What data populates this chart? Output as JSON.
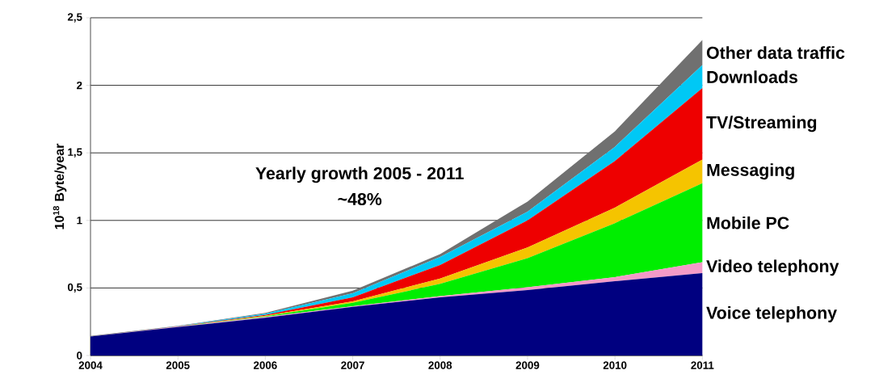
{
  "chart_data": {
    "type": "area",
    "stacked": true,
    "ylabel": "10$^{18}$ Byte/year",
    "x": [
      2004,
      2005,
      2006,
      2007,
      2008,
      2009,
      2010,
      2011
    ],
    "xlim": [
      2004,
      2011
    ],
    "xticks": [
      2004,
      2005,
      2006,
      2007,
      2008,
      2009,
      2010,
      2011
    ],
    "ylim": [
      0,
      2.5
    ],
    "yticks": [
      0,
      {
        "value": 0.5,
        "label": "0,5"
      },
      1,
      {
        "value": 1.5,
        "label": "1,5"
      },
      2,
      {
        "value": 2.5,
        "label": "2,5"
      }
    ],
    "grid": "y",
    "annotations": [
      "Yearly growth 2005 - 2011",
      "~48%"
    ],
    "series": [
      {
        "name": "Voice telephony",
        "color": "#000080",
        "values": [
          0.14,
          0.21,
          0.28,
          0.36,
          0.43,
          0.485,
          0.55,
          0.61
        ]
      },
      {
        "name": "Video telephony",
        "color": "#f49ac8",
        "values": [
          0,
          0.003,
          0.005,
          0.005,
          0.01,
          0.02,
          0.03,
          0.08
        ]
      },
      {
        "name": "Mobile PC",
        "color": "#00ee00",
        "values": [
          0,
          0,
          0.005,
          0.025,
          0.09,
          0.215,
          0.4,
          0.585
        ]
      },
      {
        "name": "Messaging",
        "color": "#f5c400",
        "values": [
          0,
          0.001,
          0.005,
          0.01,
          0.04,
          0.08,
          0.115,
          0.175
        ]
      },
      {
        "name": "TV/Streaming",
        "color": "#ee0000",
        "values": [
          0,
          0.001,
          0.005,
          0.03,
          0.1,
          0.2,
          0.345,
          0.53
        ]
      },
      {
        "name": "Downloads",
        "color": "#00c8f5",
        "values": [
          0.001,
          0.002,
          0.01,
          0.03,
          0.06,
          0.065,
          0.105,
          0.17
        ]
      },
      {
        "name": "Other data traffic",
        "color": "#707070",
        "values": [
          0.004,
          0.003,
          0.005,
          0.02,
          0.02,
          0.075,
          0.115,
          0.185
        ]
      }
    ]
  }
}
